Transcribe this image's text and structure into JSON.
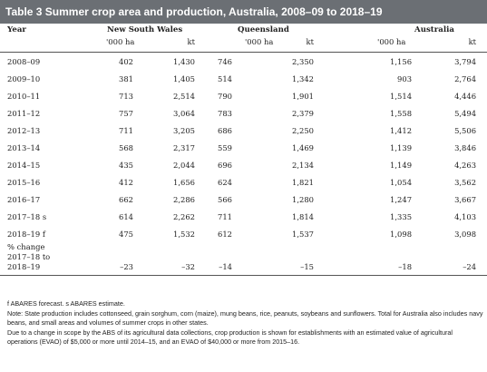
{
  "title": "Table 3 Summer crop area and production, Australia, 2008–09 to 2018–19",
  "headers": {
    "year": "Year",
    "nsw": "New South Wales",
    "qld": "Queensland",
    "aus": "Australia",
    "unit_area": "'000 ha",
    "unit_prod": "kt"
  },
  "rows": [
    {
      "year": "2008–09",
      "nsw_area": "402",
      "nsw_kt": "1,430",
      "qld_area": "746",
      "qld_kt": "2,350",
      "aus_area": "1,156",
      "aus_kt": "3,794"
    },
    {
      "year": "2009–10",
      "nsw_area": "381",
      "nsw_kt": "1,405",
      "qld_area": "514",
      "qld_kt": "1,342",
      "aus_area": "903",
      "aus_kt": "2,764"
    },
    {
      "year": "2010–11",
      "nsw_area": "713",
      "nsw_kt": "2,514",
      "qld_area": "790",
      "qld_kt": "1,901",
      "aus_area": "1,514",
      "aus_kt": "4,446"
    },
    {
      "year": "2011–12",
      "nsw_area": "757",
      "nsw_kt": "3,064",
      "qld_area": "783",
      "qld_kt": "2,379",
      "aus_area": "1,558",
      "aus_kt": "5,494"
    },
    {
      "year": "2012–13",
      "nsw_area": "711",
      "nsw_kt": "3,205",
      "qld_area": "686",
      "qld_kt": "2,250",
      "aus_area": "1,412",
      "aus_kt": "5,506"
    },
    {
      "year": "2013–14",
      "nsw_area": "568",
      "nsw_kt": "2,317",
      "qld_area": "559",
      "qld_kt": "1,469",
      "aus_area": "1,139",
      "aus_kt": "3,846"
    },
    {
      "year": "2014–15",
      "nsw_area": "435",
      "nsw_kt": "2,044",
      "qld_area": "696",
      "qld_kt": "2,134",
      "aus_area": "1,149",
      "aus_kt": "4,263"
    },
    {
      "year": "2015–16",
      "nsw_area": "412",
      "nsw_kt": "1,656",
      "qld_area": "624",
      "qld_kt": "1,821",
      "aus_area": "1,054",
      "aus_kt": "3,562"
    },
    {
      "year": "2016–17",
      "nsw_area": "662",
      "nsw_kt": "2,286",
      "qld_area": "566",
      "qld_kt": "1,280",
      "aus_area": "1,247",
      "aus_kt": "3,667"
    },
    {
      "year": "2017–18 s",
      "nsw_area": "614",
      "nsw_kt": "2,262",
      "qld_area": "711",
      "qld_kt": "1,814",
      "aus_area": "1,335",
      "aus_kt": "4,103"
    },
    {
      "year": "2018–19 f",
      "nsw_area": "475",
      "nsw_kt": "1,532",
      "qld_area": "612",
      "qld_kt": "1,537",
      "aus_area": "1,098",
      "aus_kt": "3,098"
    }
  ],
  "change": {
    "line1": "% change",
    "line2": "2017–18 to",
    "line3": "2018–19",
    "nsw_area": "–23",
    "nsw_kt": "–32",
    "qld_area": "–14",
    "qld_kt": "–15",
    "aus_area": "–18",
    "aus_kt": "–24"
  },
  "notes": {
    "line1": "f ABARES forecast. s ABARES estimate.",
    "line2": "Note: State production includes cottonseed, grain sorghum, corn (maize), mung beans, rice, peanuts, soybeans and sunflowers. Total for Australia also includes navy beans, and small areas and volumes of summer crops in other states.",
    "line3": "Due to a change in scope by the ABS of its agricultural data collections, crop production is shown for establishments with an estimated value of agricultural operations (EVAO) of $5,000 or more until 2014–15, and an EVAO of $40,000 or more from 2015–16."
  }
}
